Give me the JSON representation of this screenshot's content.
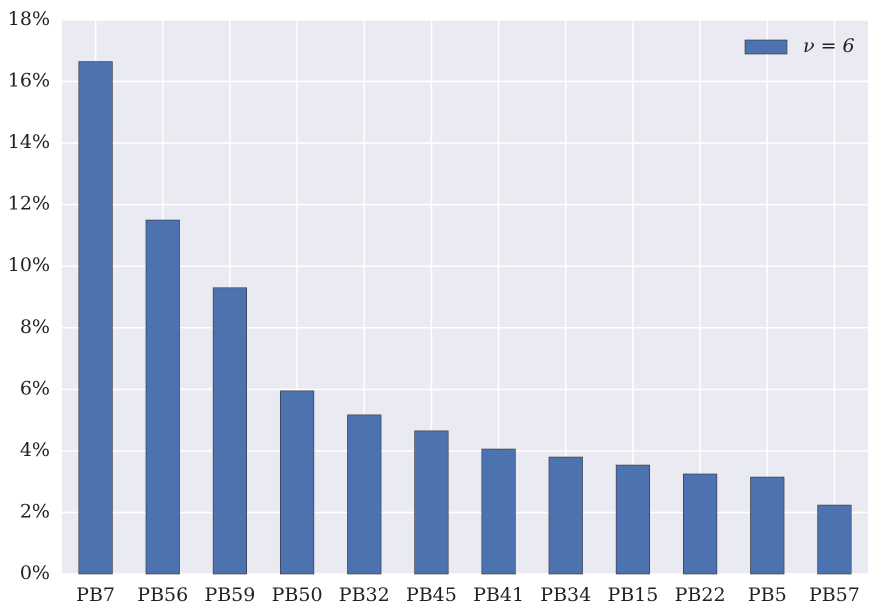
{
  "chart_data": {
    "type": "bar",
    "categories": [
      "PB7",
      "PB56",
      "PB59",
      "PB50",
      "PB32",
      "PB45",
      "PB41",
      "PB34",
      "PB15",
      "PB22",
      "PB5",
      "PB57"
    ],
    "series": [
      {
        "name": "ν = 6",
        "color": "#4c72b0",
        "values": [
          16.65,
          11.5,
          9.3,
          5.95,
          5.17,
          4.65,
          4.06,
          3.8,
          3.54,
          3.25,
          3.15,
          2.24
        ]
      }
    ],
    "ylim": [
      0,
      18
    ],
    "yticks": [
      {
        "value": 0,
        "label": "0%"
      },
      {
        "value": 2,
        "label": "2%"
      },
      {
        "value": 4,
        "label": "4%"
      },
      {
        "value": 6,
        "label": "6%"
      },
      {
        "value": 8,
        "label": "8%"
      },
      {
        "value": 10,
        "label": "10%"
      },
      {
        "value": 12,
        "label": "12%"
      },
      {
        "value": 14,
        "label": "14%"
      },
      {
        "value": 16,
        "label": "16%"
      },
      {
        "value": 18,
        "label": "18%"
      }
    ],
    "grid": true,
    "legend": "upper right",
    "background": "#eaeaf2"
  }
}
